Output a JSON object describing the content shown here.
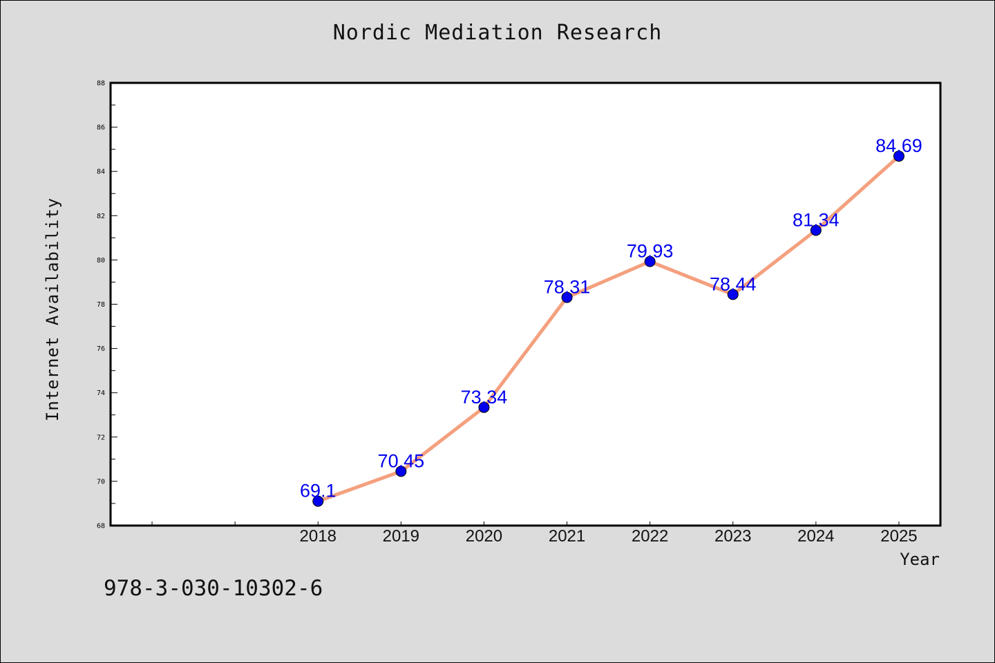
{
  "chart_data": {
    "type": "line",
    "title": "Nordic Mediation Research",
    "xlabel": "Year",
    "ylabel": "Internet Availability",
    "x": [
      "2018",
      "2019",
      "2020",
      "2021",
      "2022",
      "2023",
      "2024",
      "2025"
    ],
    "series": [
      {
        "values": [
          69.1,
          70.45,
          73.34,
          78.31,
          79.93,
          78.44,
          81.34,
          84.69
        ],
        "labels": [
          "69.1",
          "70.45",
          "73.34",
          "78.31",
          "79.93",
          "78.44",
          "81.34",
          "84.69"
        ]
      }
    ],
    "ylim": [
      68,
      88
    ],
    "yticks": [
      "68",
      "70",
      "72",
      "74",
      "76",
      "78",
      "80",
      "82",
      "84",
      "86",
      "88"
    ],
    "xlim": [
      2015.5,
      2025.5
    ],
    "grid": false,
    "colors": {
      "line": "#f4a07e",
      "marker": "#0000ee",
      "data_label": "#0000ee",
      "background": "#dcdcdc",
      "plot_area": "#ffffff"
    }
  },
  "footer_text": "978-3-030-10302-6"
}
